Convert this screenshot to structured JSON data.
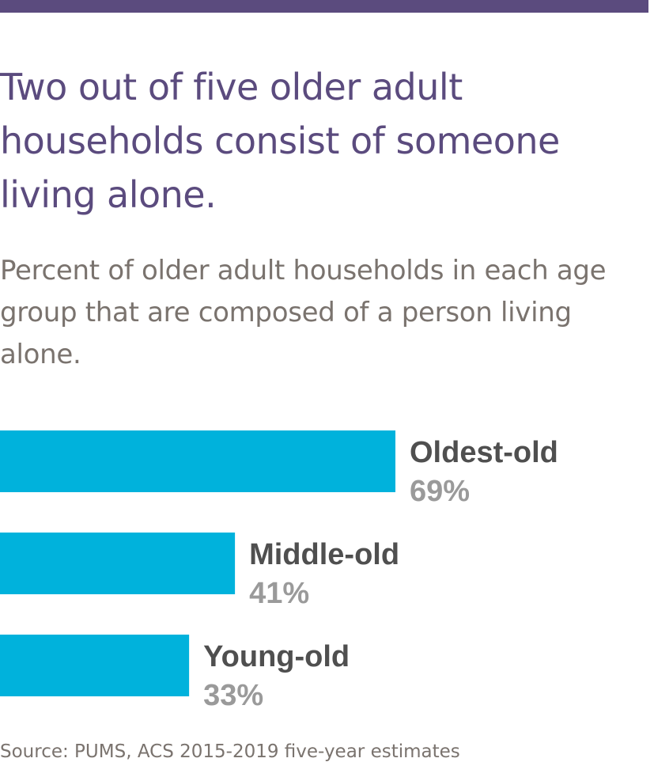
{
  "colors": {
    "accent": "#5b4b7e",
    "bar": "#00b2dc",
    "subtitle": "#7a736e",
    "category_label": "#4f4f4f",
    "value_label": "#9a9a9a",
    "source": "#7a736e"
  },
  "header": {
    "title": "Two out of five older adult households consist of someone living alone.",
    "subtitle": "Percent of older adult households in each age group that are composed of a person living alone."
  },
  "chart_data": {
    "type": "bar",
    "orientation": "horizontal",
    "title": "Two out of five older adult households consist of someone living alone.",
    "subtitle": "Percent of older adult households in each age group that are composed of a person living alone.",
    "categories": [
      "Oldest-old",
      "Middle-old",
      "Young-old"
    ],
    "values": [
      69,
      41,
      33
    ],
    "value_labels": [
      "69%",
      "41%",
      "33%"
    ],
    "xlim": [
      0,
      100
    ],
    "grid": false,
    "legend": "none",
    "axes_visible": false
  },
  "footer": {
    "source": "Source: PUMS, ACS 2015-2019 five-year estimates"
  }
}
